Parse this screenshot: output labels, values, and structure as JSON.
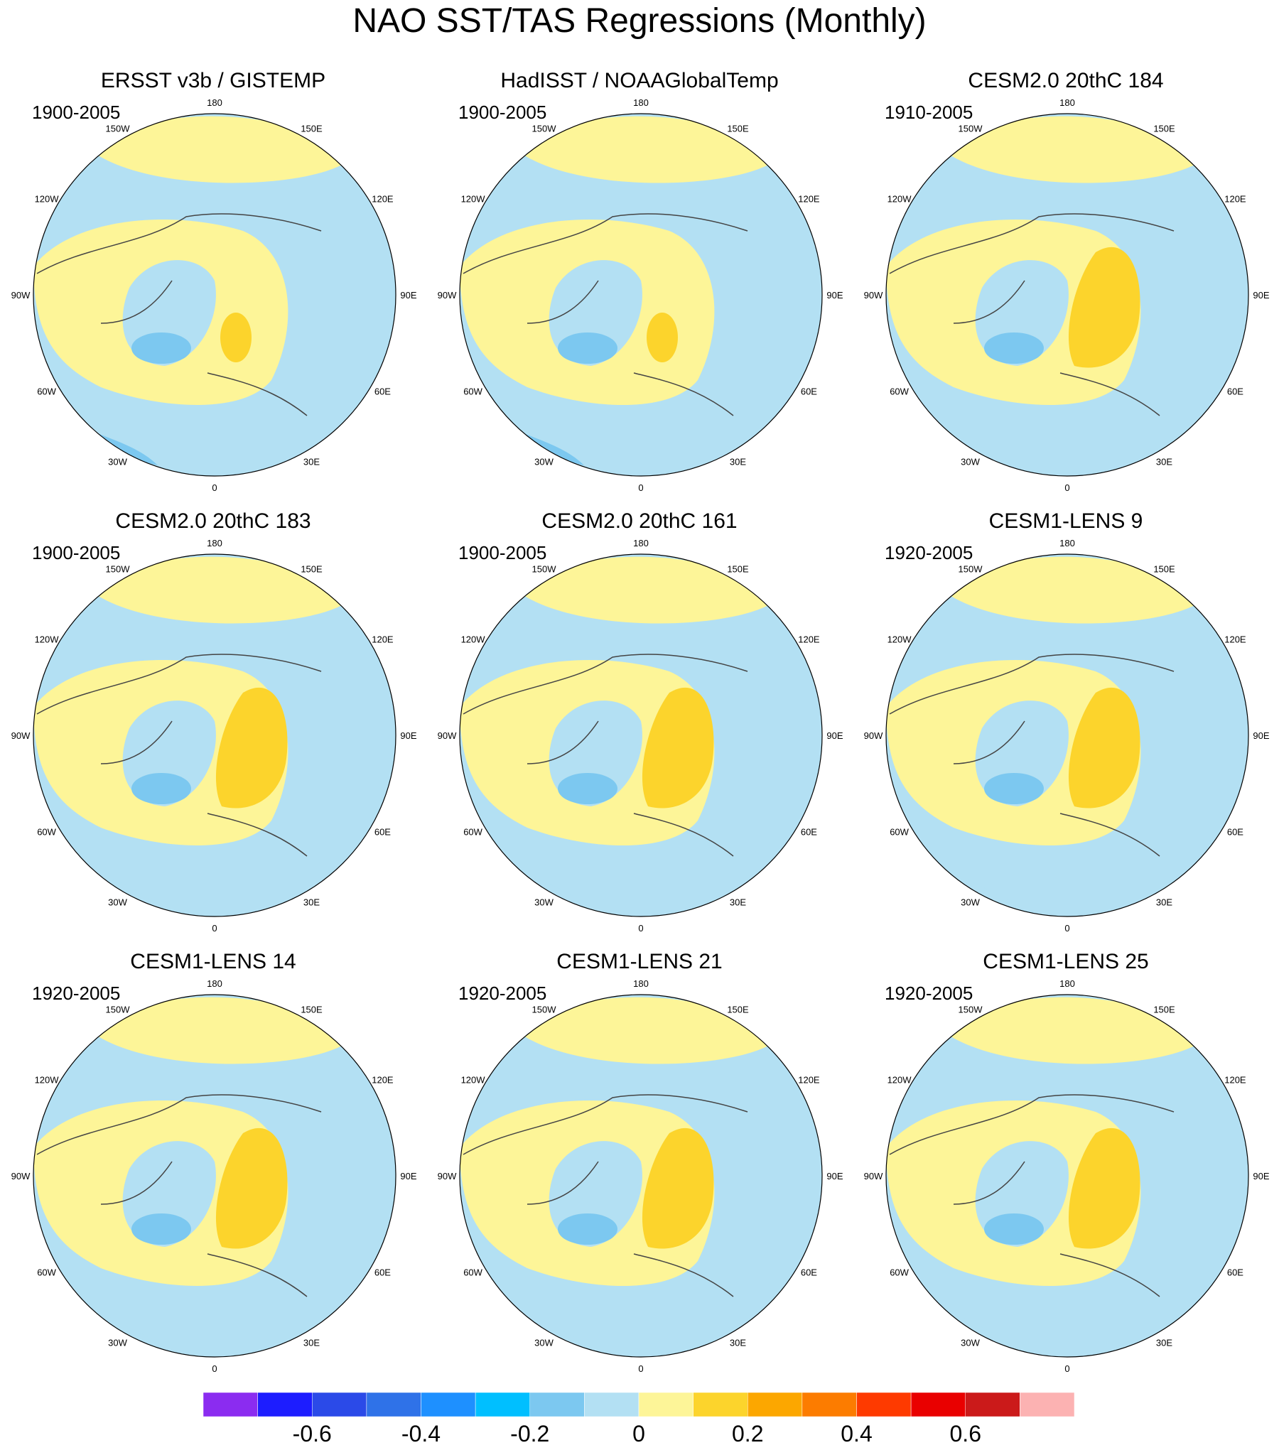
{
  "title": "NAO SST/TAS Regressions (Monthly)",
  "colors": {
    "scale": [
      "#8b2cf0",
      "#1d1dff",
      "#2b4ae8",
      "#2f72e8",
      "#1e90ff",
      "#00bfff",
      "#7cc8f0",
      "#b3e0f3",
      "#fdf598",
      "#fcd42c",
      "#fca700",
      "#fc7c00",
      "#fe3a00",
      "#e90000",
      "#cb1a1a",
      "#fcb2b2"
    ],
    "land_outline": "#444444",
    "coast_white": "#ffffff"
  },
  "panels": [
    {
      "title": "ERSST v3b / GISTEMP",
      "period": "1900-2005",
      "pattern": "obs"
    },
    {
      "title": "HadISST / NOAAGlobalTemp",
      "period": "1900-2005",
      "pattern": "obs2"
    },
    {
      "title": "CESM2.0 20thC 184",
      "period": "1910-2005",
      "pattern": "model"
    },
    {
      "title": "CESM2.0 20thC 183",
      "period": "1900-2005",
      "pattern": "model"
    },
    {
      "title": "CESM2.0 20thC 161",
      "period": "1900-2005",
      "pattern": "model"
    },
    {
      "title": "CESM1-LENS 9",
      "period": "1920-2005",
      "pattern": "model"
    },
    {
      "title": "CESM1-LENS 14",
      "period": "1920-2005",
      "pattern": "model"
    },
    {
      "title": "CESM1-LENS 21",
      "period": "1920-2005",
      "pattern": "model"
    },
    {
      "title": "CESM1-LENS 25",
      "period": "1920-2005",
      "pattern": "model"
    }
  ],
  "lon_labels": [
    "180",
    "150E",
    "120E",
    "90E",
    "60E",
    "30E",
    "0",
    "30W",
    "60W",
    "90W",
    "120W",
    "150W"
  ],
  "colorbar": {
    "tick_labels": [
      "-0.6",
      "-0.4",
      "-0.2",
      "0",
      "0.2",
      "0.4",
      "0.6"
    ]
  }
}
